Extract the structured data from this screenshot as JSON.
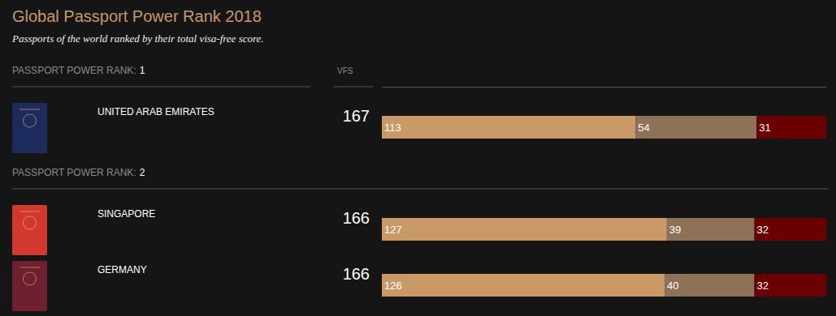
{
  "chart_data": {
    "type": "bar",
    "orientation": "horizontal",
    "stacked": true,
    "data_labels": true,
    "tick_labels": false,
    "title": "Global Passport Power Rank 2018",
    "subtitle": "Passports of the world ranked by their total visa-free score.",
    "rank_label": "PASSPORT POWER RANK:",
    "score_label": "VFS",
    "categories": [
      "UNITED ARAB EMIRATES",
      "SINGAPORE",
      "GERMANY"
    ],
    "ranks": [
      1,
      2,
      2
    ],
    "scores": [
      167,
      166,
      166
    ],
    "xlim": [
      0,
      198
    ],
    "series": [
      {
        "color": "#c99a67",
        "values": [
          113,
          127,
          126
        ]
      },
      {
        "color": "#8d7257",
        "values": [
          54,
          39,
          40
        ]
      },
      {
        "color": "#6b0000",
        "values": [
          31,
          32,
          32
        ]
      }
    ]
  }
}
